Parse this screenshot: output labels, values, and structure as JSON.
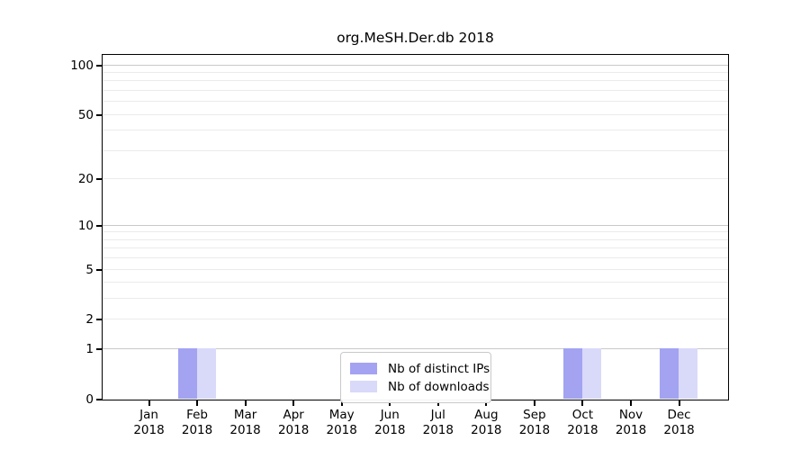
{
  "chart_data": {
    "type": "bar",
    "title": "org.MeSH.Der.db 2018",
    "categories": [
      "Jan",
      "Feb",
      "Mar",
      "Apr",
      "May",
      "Jun",
      "Jul",
      "Aug",
      "Sep",
      "Oct",
      "Nov",
      "Dec"
    ],
    "year_label": "2018",
    "series": [
      {
        "name": "Nb of distinct IPs",
        "color": "#a3a3f2",
        "values": [
          0,
          1,
          0,
          0,
          0,
          0,
          0,
          0,
          0,
          1,
          0,
          1
        ]
      },
      {
        "name": "Nb of downloads",
        "color": "#d9d9f9",
        "values": [
          0,
          1,
          0,
          0,
          0,
          0,
          0,
          0,
          0,
          1,
          0,
          1
        ]
      }
    ],
    "y_axis": {
      "scale": "log1p",
      "tick_labels": [
        0,
        1,
        2,
        5,
        10,
        20,
        50,
        100
      ],
      "major_gridlines": [
        1,
        10,
        100
      ],
      "minor_gridlines": [
        2,
        3,
        4,
        5,
        6,
        7,
        8,
        9,
        20,
        30,
        40,
        50,
        60,
        70,
        80,
        90
      ],
      "ylim": [
        0,
        115
      ]
    },
    "xlabel": "",
    "ylabel": "",
    "grid": true,
    "legend_position": "bottom-center"
  },
  "colors": {
    "background": "#ffffff",
    "axis": "#000000",
    "grid_major": "#c9c9c9",
    "grid_minor": "#ebebeb",
    "legend_border": "#c9c9c9"
  }
}
